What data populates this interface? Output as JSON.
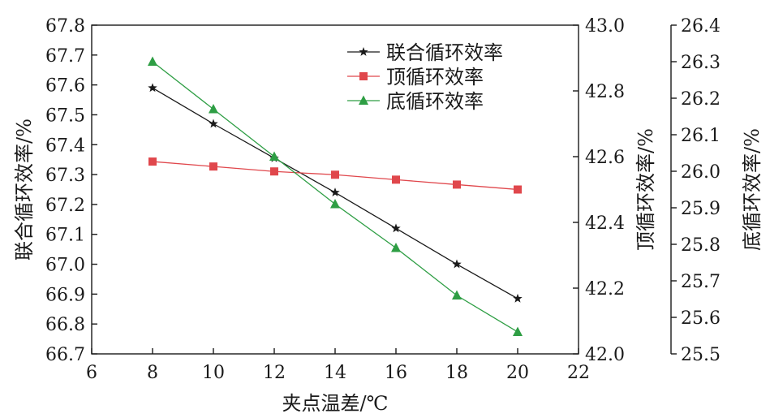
{
  "chart_data": {
    "type": "line",
    "xlabel": "夹点温差/℃",
    "xlim": [
      6,
      22
    ],
    "xticks": [
      "6",
      "8",
      "10",
      "12",
      "14",
      "16",
      "18",
      "20",
      "22"
    ],
    "x": [
      8,
      10,
      12,
      14,
      16,
      18,
      20
    ],
    "axes": {
      "left": {
        "label": "联合循环效率/%",
        "ylim": [
          66.7,
          67.8
        ],
        "ticks": [
          "66.7",
          "66.8",
          "66.9",
          "67.0",
          "67.1",
          "67.2",
          "67.3",
          "67.4",
          "67.5",
          "67.6",
          "67.7",
          "67.8"
        ]
      },
      "right1": {
        "label": "顶循环效率/%",
        "ylim": [
          42.0,
          43.0
        ],
        "ticks": [
          "42.0",
          "42.2",
          "42.4",
          "42.6",
          "42.8",
          "43.0"
        ]
      },
      "right2": {
        "label": "底循环效率/%",
        "ylim": [
          25.5,
          26.4
        ],
        "ticks": [
          "25.5",
          "25.6",
          "25.7",
          "25.8",
          "25.9",
          "26.0",
          "26.1",
          "26.2",
          "26.3",
          "26.4"
        ]
      }
    },
    "series": [
      {
        "name": "联合循环效率",
        "axis": "left",
        "marker": "star",
        "color": "#1a1a1a",
        "values": [
          67.59,
          67.47,
          67.355,
          67.24,
          67.12,
          67.0,
          66.885
        ]
      },
      {
        "name": "顶循环效率",
        "axis": "right1",
        "marker": "square",
        "color": "#e0474c",
        "values": [
          42.585,
          42.57,
          42.555,
          42.545,
          42.53,
          42.515,
          42.5
        ]
      },
      {
        "name": "底循环效率",
        "axis": "right2",
        "marker": "triangle",
        "color": "#2e9e44",
        "values": [
          26.3,
          26.17,
          26.04,
          25.91,
          25.79,
          25.66,
          25.56
        ]
      }
    ],
    "legend_position": "top-right",
    "grid": false
  }
}
